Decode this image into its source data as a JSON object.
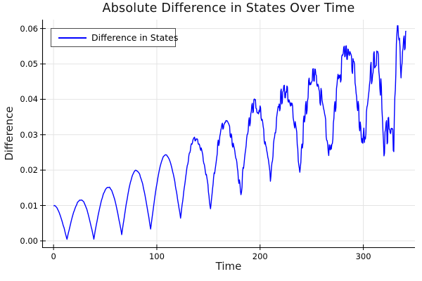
{
  "chart_data": {
    "type": "line",
    "title": "Absolute Difference in States Over Time",
    "xlabel": "Time",
    "ylabel": "Difference",
    "legend": {
      "label": "Difference in States",
      "position": "top-left"
    },
    "grid": true,
    "background_color": "#ffffff",
    "grid_color": "#e4e4e4",
    "axis_color": "#000000",
    "xlim": [
      -11,
      350
    ],
    "ylim": [
      -0.002,
      0.0625
    ],
    "x_ticks": [
      {
        "value": 0,
        "label": "0"
      },
      {
        "value": 100,
        "label": "100"
      },
      {
        "value": 200,
        "label": "200"
      },
      {
        "value": 300,
        "label": "300"
      }
    ],
    "y_ticks": [
      {
        "value": 0.0,
        "label": "0.00"
      },
      {
        "value": 0.01,
        "label": "0.01"
      },
      {
        "value": 0.02,
        "label": "0.02"
      },
      {
        "value": 0.03,
        "label": "0.03"
      },
      {
        "value": 0.04,
        "label": "0.04"
      },
      {
        "value": 0.05,
        "label": "0.05"
      },
      {
        "value": 0.06,
        "label": "0.06"
      }
    ],
    "series": [
      {
        "name": "Difference in States",
        "color": "#0000ff",
        "line_width": 1.4,
        "sample_step": 0.5,
        "keyframes": [
          [
            0,
            0.01
          ],
          [
            13,
            0.0004
          ],
          [
            26.5,
            0.0116
          ],
          [
            39,
            0.0006
          ],
          [
            53,
            0.0152
          ],
          [
            66,
            0.0018
          ],
          [
            80,
            0.0199
          ],
          [
            94,
            0.0034
          ],
          [
            108.5,
            0.0243
          ],
          [
            123,
            0.0066
          ],
          [
            137.5,
            0.029
          ],
          [
            152,
            0.0098
          ],
          [
            166,
            0.0333
          ],
          [
            181.5,
            0.0134
          ],
          [
            195.5,
            0.0386
          ],
          [
            210,
            0.0174
          ],
          [
            224,
            0.0427
          ],
          [
            238.5,
            0.0222
          ],
          [
            252,
            0.0462
          ],
          [
            267.5,
            0.0242
          ],
          [
            284,
            0.0528
          ],
          [
            300,
            0.0262
          ],
          [
            313,
            0.0516
          ],
          [
            320,
            0.0262
          ],
          [
            325,
            0.031
          ],
          [
            329.5,
            0.0292
          ],
          [
            333.5,
            0.06
          ],
          [
            336.5,
            0.0482
          ],
          [
            341.5,
            0.0558
          ]
        ],
        "noise": {
          "onset_t": 110,
          "base": 0.00012,
          "slope": 2.25e-05,
          "max": 0.0046,
          "clip_high": 0.0608
        }
      }
    ]
  }
}
